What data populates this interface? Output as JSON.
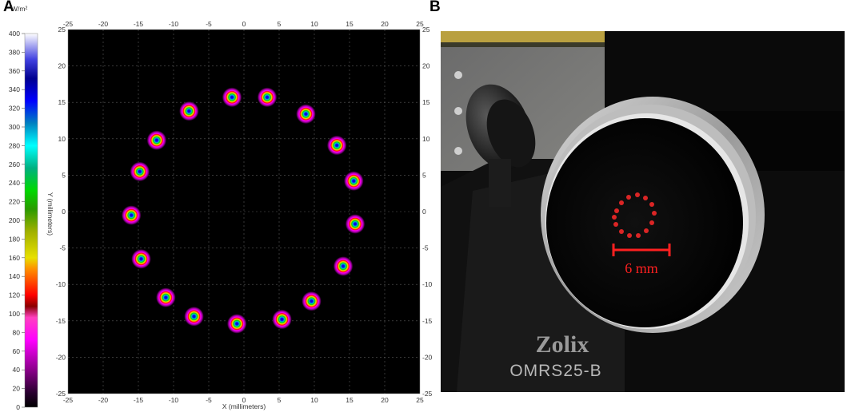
{
  "panels": {
    "a": "A",
    "b": "B"
  },
  "chart_data": {
    "type": "heatmap",
    "colorbar": {
      "unit": "W/m²",
      "range": [
        0,
        400
      ],
      "ticks": [
        0,
        20,
        40,
        60,
        80,
        100,
        120,
        140,
        160,
        180,
        200,
        220,
        240,
        260,
        280,
        300,
        320,
        340,
        360,
        380,
        400
      ]
    },
    "xlabel": "X (millimeters)",
    "ylabel": "Y (millimeters)",
    "xlim": [
      -25,
      25
    ],
    "ylim": [
      -25,
      25
    ],
    "xticks": [
      -25,
      -20,
      -15,
      -10,
      -5,
      0,
      5,
      10,
      15,
      20,
      25
    ],
    "yticks": [
      25,
      20,
      15,
      10,
      5,
      0,
      -5,
      -10,
      -15,
      -20,
      -25
    ],
    "grid": true,
    "spots": [
      {
        "x": -1.7,
        "y": 15.7
      },
      {
        "x": 3.3,
        "y": 15.7
      },
      {
        "x": 8.8,
        "y": 13.4
      },
      {
        "x": 13.2,
        "y": 9.1
      },
      {
        "x": 15.6,
        "y": 4.2
      },
      {
        "x": 15.8,
        "y": -1.7
      },
      {
        "x": 14.1,
        "y": -7.5
      },
      {
        "x": 9.6,
        "y": -12.3
      },
      {
        "x": 5.4,
        "y": -14.8
      },
      {
        "x": -1.0,
        "y": -15.4
      },
      {
        "x": -7.1,
        "y": -14.4
      },
      {
        "x": -11.1,
        "y": -11.8
      },
      {
        "x": -14.6,
        "y": -6.5
      },
      {
        "x": -16.0,
        "y": -0.5
      },
      {
        "x": -14.8,
        "y": 5.5
      },
      {
        "x": -12.4,
        "y": 9.8
      },
      {
        "x": -7.8,
        "y": 13.8
      }
    ]
  },
  "photo": {
    "scale_label": "6 mm",
    "brand": "Zolix",
    "model": "OMRS25-B"
  }
}
